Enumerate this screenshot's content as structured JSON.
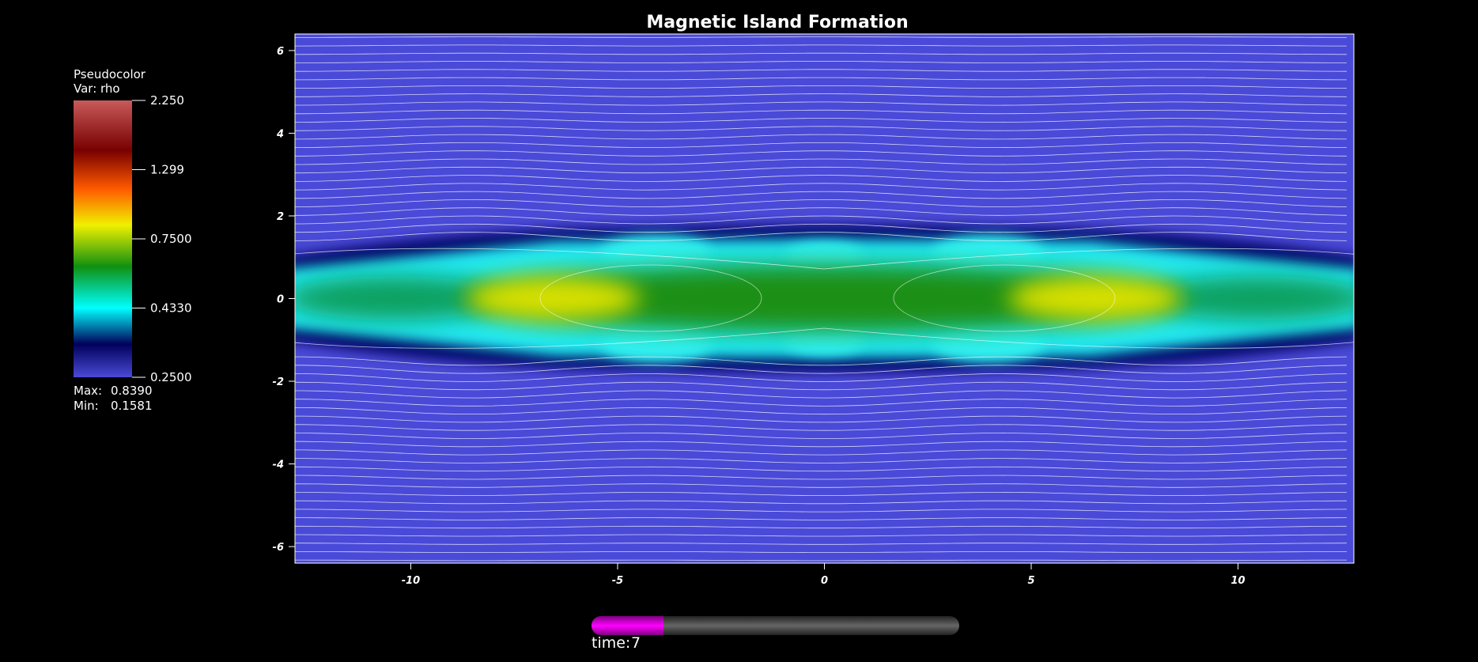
{
  "chart_data": {
    "type": "pseudocolor",
    "title": "Magnetic Island Formation",
    "xlim": [
      -12.8,
      12.8
    ],
    "ylim": [
      -6.4,
      6.4
    ],
    "xticks": [
      -10,
      -5,
      0,
      5,
      10
    ],
    "yticks": [
      -6,
      -4,
      -2,
      0,
      2,
      4,
      6
    ],
    "legend": {
      "plot_name": "Pseudocolor",
      "variable": "Var: rho",
      "log_scale": true,
      "range": [
        0.25,
        2.25
      ],
      "ticks": [
        {
          "value": 2.25,
          "label": "2.250"
        },
        1.299,
        {
          "value": 0.75,
          "label": "0.7500"
        },
        {
          "value": 0.433,
          "label": "0.4330"
        },
        {
          "value": 0.25,
          "label": "0.2500"
        }
      ],
      "max_label": "Max:",
      "max": {
        "value": 0.839,
        "label": "0.8390"
      },
      "min_label": "Min:",
      "min": {
        "value": 0.1581,
        "label": "0.1581"
      }
    },
    "time_label": "time:",
    "time": 7
  }
}
